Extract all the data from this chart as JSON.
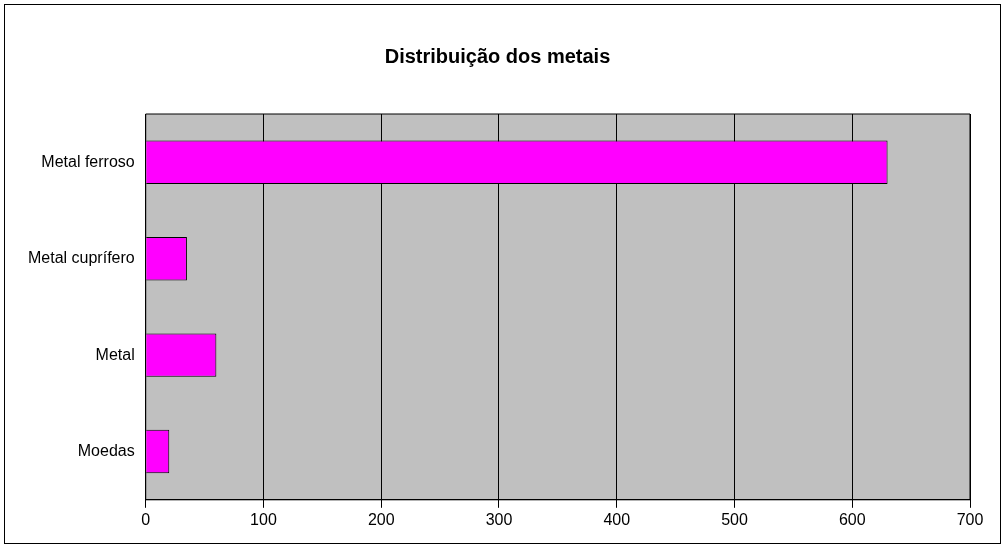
{
  "chart_data": {
    "type": "bar",
    "title": "Distribuição dos metais",
    "orientation": "horizontal",
    "categories": [
      "Metal ferroso",
      "Metal cuprífero",
      "Metal",
      "Moedas"
    ],
    "values": [
      630,
      35,
      60,
      20
    ],
    "color": "#ff00ff",
    "xlim": [
      0,
      700
    ],
    "xticks": [
      0,
      100,
      200,
      300,
      400,
      500,
      600,
      700
    ],
    "grid": "x",
    "legend": false
  }
}
